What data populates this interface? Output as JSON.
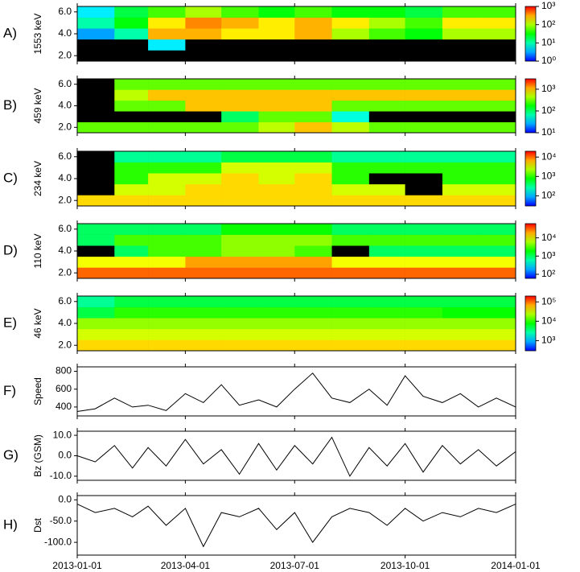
{
  "chart_data": [
    {
      "type": "heatmap",
      "panel_label": "A)",
      "ylabel": "1553 keV",
      "xlim": [
        "2013-01-01",
        "2014-01-01"
      ],
      "ylim": [
        1.5,
        6.5
      ],
      "yticks": [
        {
          "value": 2,
          "label": "2.0"
        },
        {
          "value": 4,
          "label": "4.0"
        },
        {
          "value": 6,
          "label": "6.0"
        }
      ],
      "clim": [
        1,
        1000
      ],
      "log_color": true,
      "cticks": [
        {
          "value": 1,
          "label": "10⁰"
        },
        {
          "value": 10,
          "label": "10¹"
        },
        {
          "value": 100,
          "label": "10²"
        },
        {
          "value": 1000,
          "label": "10³"
        }
      ],
      "x": [
        "2013-01-01",
        "2013-02-01",
        "2013-03-01",
        "2013-04-01",
        "2013-05-01",
        "2013-06-01",
        "2013-07-01",
        "2013-08-01",
        "2013-09-01",
        "2013-10-01",
        "2013-11-01",
        "2013-12-01"
      ],
      "y": [
        2,
        3,
        4,
        5,
        6
      ],
      "values": [
        [
          0.1,
          0.1,
          0.1,
          0.1,
          0.1,
          0.1,
          0.1,
          0.1,
          0.1,
          0.1,
          0.1,
          0.1
        ],
        [
          0.1,
          0.1,
          5,
          0.1,
          0.1,
          0.1,
          0.1,
          0.1,
          0.1,
          0.1,
          0.1,
          0.1
        ],
        [
          3,
          10,
          300,
          300,
          200,
          200,
          300,
          100,
          50,
          30,
          100,
          100
        ],
        [
          10,
          30,
          200,
          400,
          300,
          200,
          300,
          200,
          100,
          50,
          200,
          200
        ],
        [
          5,
          20,
          50,
          100,
          50,
          30,
          50,
          30,
          30,
          20,
          50,
          50
        ]
      ]
    },
    {
      "type": "heatmap",
      "panel_label": "B)",
      "ylabel": "459 keV",
      "xlim": [
        "2013-01-01",
        "2014-01-01"
      ],
      "ylim": [
        1.5,
        6.5
      ],
      "yticks": [
        {
          "value": 2,
          "label": "2.0"
        },
        {
          "value": 4,
          "label": "4.0"
        },
        {
          "value": 6,
          "label": "6.0"
        }
      ],
      "clim": [
        10,
        3000
      ],
      "log_color": true,
      "cticks": [
        {
          "value": 10,
          "label": "10¹"
        },
        {
          "value": 100,
          "label": "10²"
        },
        {
          "value": 1000,
          "label": "10³"
        }
      ],
      "x": [
        "2013-01-01",
        "2013-02-01",
        "2013-03-01",
        "2013-04-01",
        "2013-05-01",
        "2013-06-01",
        "2013-07-01",
        "2013-08-01",
        "2013-09-01",
        "2013-10-01",
        "2013-11-01",
        "2013-12-01"
      ],
      "y": [
        2,
        3,
        4,
        5,
        6
      ],
      "values": [
        [
          300,
          300,
          300,
          300,
          300,
          500,
          1000,
          500,
          300,
          300,
          300,
          300
        ],
        [
          1,
          1,
          1,
          1,
          100,
          300,
          300,
          50,
          1,
          1,
          1,
          1
        ],
        [
          1,
          300,
          300,
          1000,
          1000,
          1000,
          1000,
          300,
          300,
          300,
          300,
          300
        ],
        [
          1,
          500,
          1000,
          1000,
          1000,
          1000,
          1000,
          1000,
          1000,
          1000,
          1000,
          1000
        ],
        [
          1,
          300,
          300,
          300,
          300,
          300,
          300,
          300,
          300,
          300,
          300,
          300
        ]
      ]
    },
    {
      "type": "heatmap",
      "panel_label": "C)",
      "ylabel": "234 keV",
      "xlim": [
        "2013-01-01",
        "2014-01-01"
      ],
      "ylim": [
        1.5,
        6.5
      ],
      "yticks": [
        {
          "value": 2,
          "label": "2.0"
        },
        {
          "value": 4,
          "label": "4.0"
        },
        {
          "value": 6,
          "label": "6.0"
        }
      ],
      "clim": [
        30,
        20000
      ],
      "log_color": true,
      "cticks": [
        {
          "value": 100,
          "label": "10²"
        },
        {
          "value": 1000,
          "label": "10³"
        },
        {
          "value": 10000,
          "label": "10⁴"
        }
      ],
      "x": [
        "2013-01-01",
        "2013-02-01",
        "2013-03-01",
        "2013-04-01",
        "2013-05-01",
        "2013-06-01",
        "2013-07-01",
        "2013-08-01",
        "2013-09-01",
        "2013-10-01",
        "2013-11-01",
        "2013-12-01"
      ],
      "y": [
        2,
        3,
        4,
        5,
        6
      ],
      "values": [
        [
          5000,
          5000,
          5000,
          5000,
          5000,
          5000,
          5000,
          5000,
          5000,
          5000,
          5000,
          5000
        ],
        [
          1,
          3000,
          3000,
          5000,
          5000,
          5000,
          5000,
          3000,
          3000,
          1,
          3000,
          3000
        ],
        [
          1,
          1000,
          3000,
          3000,
          5000,
          3000,
          5000,
          1000,
          1,
          1,
          1000,
          1000
        ],
        [
          1,
          1000,
          1000,
          1000,
          3000,
          3000,
          3000,
          1000,
          1000,
          1000,
          1000,
          1000
        ],
        [
          1,
          300,
          300,
          300,
          500,
          500,
          500,
          300,
          300,
          300,
          300,
          300
        ]
      ]
    },
    {
      "type": "heatmap",
      "panel_label": "D)",
      "ylabel": "110 keV",
      "xlim": [
        "2013-01-01",
        "2014-01-01"
      ],
      "ylim": [
        1.5,
        6.5
      ],
      "yticks": [
        {
          "value": 2,
          "label": "2.0"
        },
        {
          "value": 4,
          "label": "4.0"
        },
        {
          "value": 6,
          "label": "6.0"
        }
      ],
      "clim": [
        60,
        60000
      ],
      "log_color": true,
      "cticks": [
        {
          "value": 100,
          "label": "10²"
        },
        {
          "value": 1000,
          "label": "10³"
        },
        {
          "value": 10000,
          "label": "10⁴"
        }
      ],
      "x": [
        "2013-01-01",
        "2013-02-01",
        "2013-03-01",
        "2013-04-01",
        "2013-05-01",
        "2013-06-01",
        "2013-07-01",
        "2013-08-01",
        "2013-09-01",
        "2013-10-01",
        "2013-11-01",
        "2013-12-01"
      ],
      "y": [
        2,
        3,
        4,
        5,
        6
      ],
      "values": [
        [
          30000,
          30000,
          30000,
          30000,
          30000,
          30000,
          30000,
          30000,
          30000,
          30000,
          30000,
          30000
        ],
        [
          10000,
          10000,
          10000,
          20000,
          20000,
          20000,
          20000,
          10000,
          10000,
          10000,
          10000,
          10000
        ],
        [
          1,
          1000,
          3000,
          3000,
          5000,
          5000,
          3000,
          1,
          1000,
          1000,
          1000,
          1000
        ],
        [
          1000,
          3000,
          3000,
          3000,
          5000,
          5000,
          5000,
          3000,
          3000,
          3000,
          3000,
          3000
        ],
        [
          1000,
          1000,
          1000,
          1000,
          2000,
          2000,
          2000,
          1000,
          1000,
          1000,
          1000,
          1000
        ]
      ]
    },
    {
      "type": "heatmap",
      "panel_label": "E)",
      "ylabel": "46 keV",
      "xlim": [
        "2013-01-01",
        "2014-01-01"
      ],
      "ylim": [
        1.5,
        6.5
      ],
      "yticks": [
        {
          "value": 2,
          "label": "2.0"
        },
        {
          "value": 4,
          "label": "4.0"
        },
        {
          "value": 6,
          "label": "6.0"
        }
      ],
      "clim": [
        300,
        200000
      ],
      "log_color": true,
      "cticks": [
        {
          "value": 1000,
          "label": "10³"
        },
        {
          "value": 10000,
          "label": "10⁴"
        },
        {
          "value": 100000,
          "label": "10⁵"
        }
      ],
      "x": [
        "2013-01-01",
        "2013-02-01",
        "2013-03-01",
        "2013-04-01",
        "2013-05-01",
        "2013-06-01",
        "2013-07-01",
        "2013-08-01",
        "2013-09-01",
        "2013-10-01",
        "2013-11-01",
        "2013-12-01"
      ],
      "y": [
        2,
        3,
        4,
        5,
        6
      ],
      "values": [
        [
          50000,
          50000,
          50000,
          50000,
          50000,
          50000,
          50000,
          50000,
          50000,
          50000,
          50000,
          50000
        ],
        [
          30000,
          30000,
          30000,
          30000,
          30000,
          30000,
          30000,
          30000,
          30000,
          30000,
          30000,
          30000
        ],
        [
          20000,
          20000,
          20000,
          20000,
          20000,
          20000,
          20000,
          20000,
          20000,
          20000,
          20000,
          20000
        ],
        [
          5000,
          10000,
          10000,
          10000,
          10000,
          10000,
          10000,
          10000,
          10000,
          10000,
          8000,
          8000
        ],
        [
          3000,
          5000,
          5000,
          5000,
          5000,
          5000,
          5000,
          5000,
          5000,
          5000,
          5000,
          5000
        ]
      ]
    },
    {
      "type": "line",
      "panel_label": "F)",
      "ylabel": "Speed",
      "color": "#000000",
      "xlim": [
        "2013-01-01",
        "2014-01-01"
      ],
      "ylim": [
        300,
        850
      ],
      "yticks": [
        400,
        600,
        800
      ],
      "x": [
        "2013-01-01",
        "2013-01-16",
        "2013-02-01",
        "2013-02-16",
        "2013-03-01",
        "2013-03-16",
        "2013-04-01",
        "2013-04-16",
        "2013-05-01",
        "2013-05-16",
        "2013-06-01",
        "2013-06-16",
        "2013-07-01",
        "2013-07-16",
        "2013-08-01",
        "2013-08-16",
        "2013-09-01",
        "2013-09-16",
        "2013-10-01",
        "2013-10-16",
        "2013-11-01",
        "2013-11-16",
        "2013-12-01",
        "2013-12-16",
        "2014-01-01"
      ],
      "values": [
        350,
        380,
        500,
        400,
        420,
        360,
        550,
        450,
        650,
        420,
        480,
        400,
        600,
        780,
        500,
        450,
        600,
        420,
        750,
        520,
        450,
        550,
        400,
        500,
        400
      ]
    },
    {
      "type": "line",
      "panel_label": "G)",
      "ylabel": "Bz (GSM)",
      "color": "#000000",
      "xlim": [
        "2013-01-01",
        "2014-01-01"
      ],
      "ylim": [
        -12,
        12
      ],
      "yticks": [
        {
          "value": -10,
          "label": "-10.0"
        },
        {
          "value": 0,
          "label": "0.0"
        },
        {
          "value": 10,
          "label": "10.0"
        }
      ],
      "x": [
        "2013-01-01",
        "2013-01-16",
        "2013-02-01",
        "2013-02-16",
        "2013-03-01",
        "2013-03-16",
        "2013-04-01",
        "2013-04-16",
        "2013-05-01",
        "2013-05-16",
        "2013-06-01",
        "2013-06-16",
        "2013-07-01",
        "2013-07-16",
        "2013-08-01",
        "2013-08-16",
        "2013-09-01",
        "2013-09-16",
        "2013-10-01",
        "2013-10-16",
        "2013-11-01",
        "2013-11-16",
        "2013-12-01",
        "2013-12-16",
        "2014-01-01"
      ],
      "values": [
        0,
        -3,
        5,
        -6,
        4,
        -5,
        8,
        -4,
        3,
        -9,
        6,
        -7,
        5,
        -4,
        9,
        -10,
        4,
        -5,
        6,
        -8,
        5,
        -4,
        3,
        -5,
        2
      ]
    },
    {
      "type": "line",
      "panel_label": "H)",
      "ylabel": "Dst",
      "color": "#000000",
      "xlim": [
        "2013-01-01",
        "2014-01-01"
      ],
      "ylim": [
        -130,
        10
      ],
      "yticks": [
        {
          "value": -100,
          "label": "-100.0"
        },
        {
          "value": -50,
          "label": "-50.0"
        },
        {
          "value": 0,
          "label": "0.0"
        }
      ],
      "xticks": [
        "2013-01-01",
        "2013-04-01",
        "2013-07-01",
        "2013-10-01",
        "2014-01-01"
      ],
      "x": [
        "2013-01-01",
        "2013-01-16",
        "2013-02-01",
        "2013-02-16",
        "2013-03-01",
        "2013-03-16",
        "2013-04-01",
        "2013-04-16",
        "2013-05-01",
        "2013-05-16",
        "2013-06-01",
        "2013-06-16",
        "2013-07-01",
        "2013-07-16",
        "2013-08-01",
        "2013-08-16",
        "2013-09-01",
        "2013-09-16",
        "2013-10-01",
        "2013-10-16",
        "2013-11-01",
        "2013-11-16",
        "2013-12-01",
        "2013-12-16",
        "2014-01-01"
      ],
      "values": [
        -10,
        -30,
        -20,
        -40,
        -15,
        -60,
        -20,
        -110,
        -30,
        -40,
        -20,
        -70,
        -30,
        -100,
        -40,
        -20,
        -30,
        -60,
        -20,
        -50,
        -30,
        -40,
        -20,
        -30,
        -10
      ]
    }
  ]
}
